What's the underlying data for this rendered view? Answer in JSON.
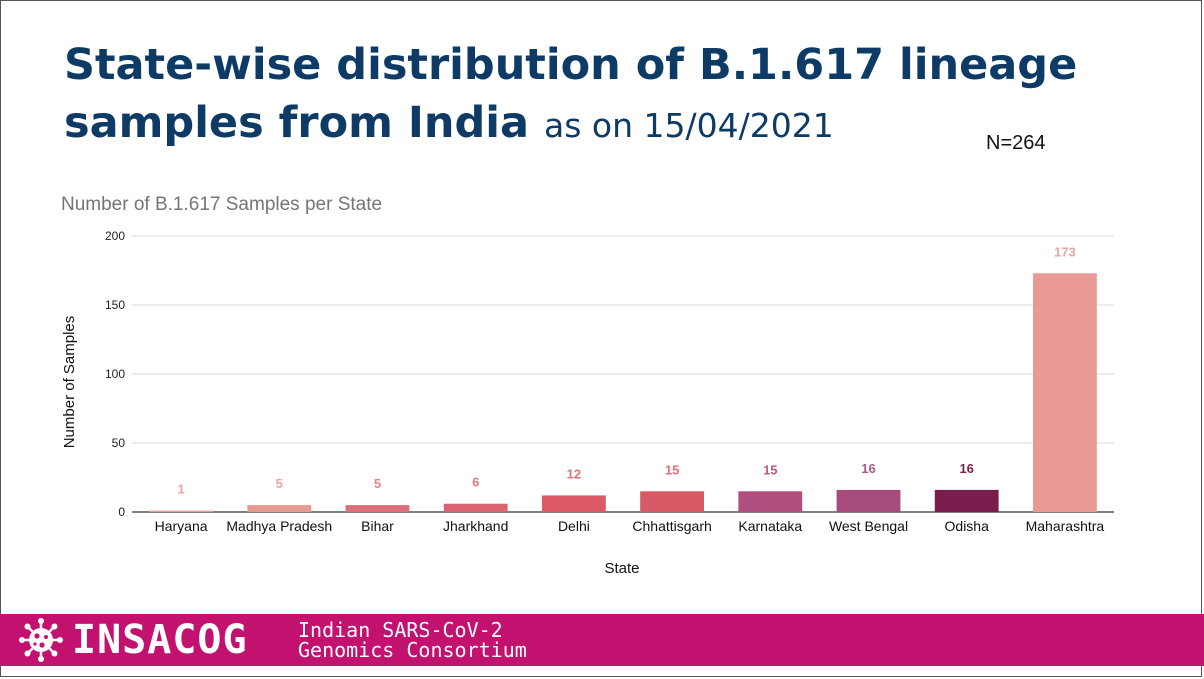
{
  "slide": {
    "title_main": "State-wise distribution of B.1.617 lineage samples from India",
    "title_date": "as on 15/04/2021",
    "sample_count": "N=264"
  },
  "footer": {
    "brand": "INSACOG",
    "line1": "Indian SARS-CoV-2",
    "line2": "Genomics Consortium",
    "icon": "virus-icon",
    "background": "#c2116e"
  },
  "chart_data": {
    "type": "bar",
    "title": "Number of B.1.617 Samples per State",
    "xlabel": "State",
    "ylabel": "Number of Samples",
    "ylim": [
      0,
      200
    ],
    "yticks": [
      0,
      50,
      100,
      150,
      200
    ],
    "grid": true,
    "categories": [
      "Haryana",
      "Madhya Pradesh",
      "Bihar",
      "Jharkhand",
      "Delhi",
      "Chhattisgarh",
      "Karnataka",
      "West Bengal",
      "Odisha",
      "Maharashtra"
    ],
    "values": [
      1,
      5,
      5,
      6,
      12,
      15,
      15,
      16,
      16,
      173
    ],
    "colors": [
      "#e99a9a",
      "#e89a92",
      "#dc6f7a",
      "#d9646f",
      "#dc5a66",
      "#d85a66",
      "#b04f7d",
      "#a64c7d",
      "#7a1d4c",
      "#e99a97"
    ],
    "label_colors": [
      "#eea3a3",
      "#eea3a3",
      "#e6848c",
      "#e07a7f",
      "#e0707a",
      "#e07075",
      "#b85a88",
      "#b05a8a",
      "#7a1d4c",
      "#eea3a3"
    ]
  }
}
